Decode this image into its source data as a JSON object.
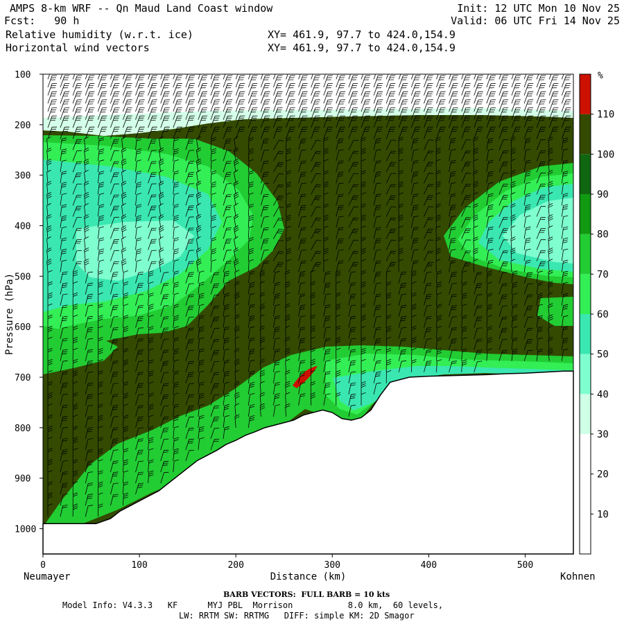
{
  "header": {
    "title": "AMPS 8-km WRF -- Qn Maud Land Coast window",
    "forecast": "Fcst:   90 h",
    "field1": "Relative humidity (w.r.t. ice)",
    "field2": "Horizontal wind vectors",
    "init": "Init: 12 UTC Mon 10 Nov 25",
    "valid": "Valid: 06 UTC Fri 14 Nov 25",
    "xy1": "XY= 461.9, 97.7 to 424.0,154.9",
    "xy2": "XY= 461.9, 97.7 to 424.0,154.9"
  },
  "chart_data": {
    "type": "heatmap",
    "xlabel": "Distance (km)",
    "ylabel": "Pressure (hPa)",
    "xlim": [
      0,
      550
    ],
    "ylim": [
      1050,
      100
    ],
    "x_ticks": [
      0,
      100,
      200,
      300,
      400,
      500
    ],
    "y_ticks": [
      100,
      200,
      300,
      400,
      500,
      600,
      700,
      800,
      900,
      1000
    ],
    "x_start_label": "Neumayer",
    "x_end_label": "Kohnen",
    "colorbar": {
      "unit": "%",
      "levels": [
        10,
        20,
        30,
        40,
        50,
        60,
        70,
        80,
        90,
        100,
        110
      ],
      "colors": [
        "#ffffff",
        "#ffffff",
        "#ffffff",
        "#cfffe6",
        "#7fffd0",
        "#3ae7b0",
        "#33ee55",
        "#22cc33",
        "#119911",
        "#116611",
        "#334a00",
        "#cc1100"
      ]
    },
    "terrain": {
      "distance_km": [
        0,
        10,
        20,
        40,
        55,
        70,
        80,
        90,
        100,
        110,
        120,
        130,
        140,
        150,
        160,
        170,
        180,
        190,
        200,
        210,
        220,
        230,
        240,
        250,
        260,
        270,
        280,
        290,
        300,
        310,
        320,
        330,
        340,
        350,
        360,
        380,
        400,
        420,
        440,
        460,
        480,
        500,
        520,
        540,
        550
      ],
      "pressure_hpa": [
        990,
        990,
        990,
        990,
        990,
        980,
        965,
        955,
        945,
        935,
        925,
        910,
        895,
        880,
        865,
        855,
        845,
        833,
        825,
        815,
        808,
        800,
        795,
        790,
        785,
        775,
        770,
        765,
        770,
        782,
        785,
        780,
        765,
        735,
        710,
        700,
        698,
        697,
        696,
        695,
        693,
        692,
        690,
        688,
        688
      ]
    },
    "barb_note": "BARB VECTORS:  FULL BARB = 10 kts"
  },
  "footer": {
    "line1": "Model Info: V4.3.3   KF      MYJ PBL  Morrison           8.0 km,  60 levels,",
    "line2": "LW: RRTM SW: RRTMG   DIFF: simple KM: 2D Smagor"
  }
}
